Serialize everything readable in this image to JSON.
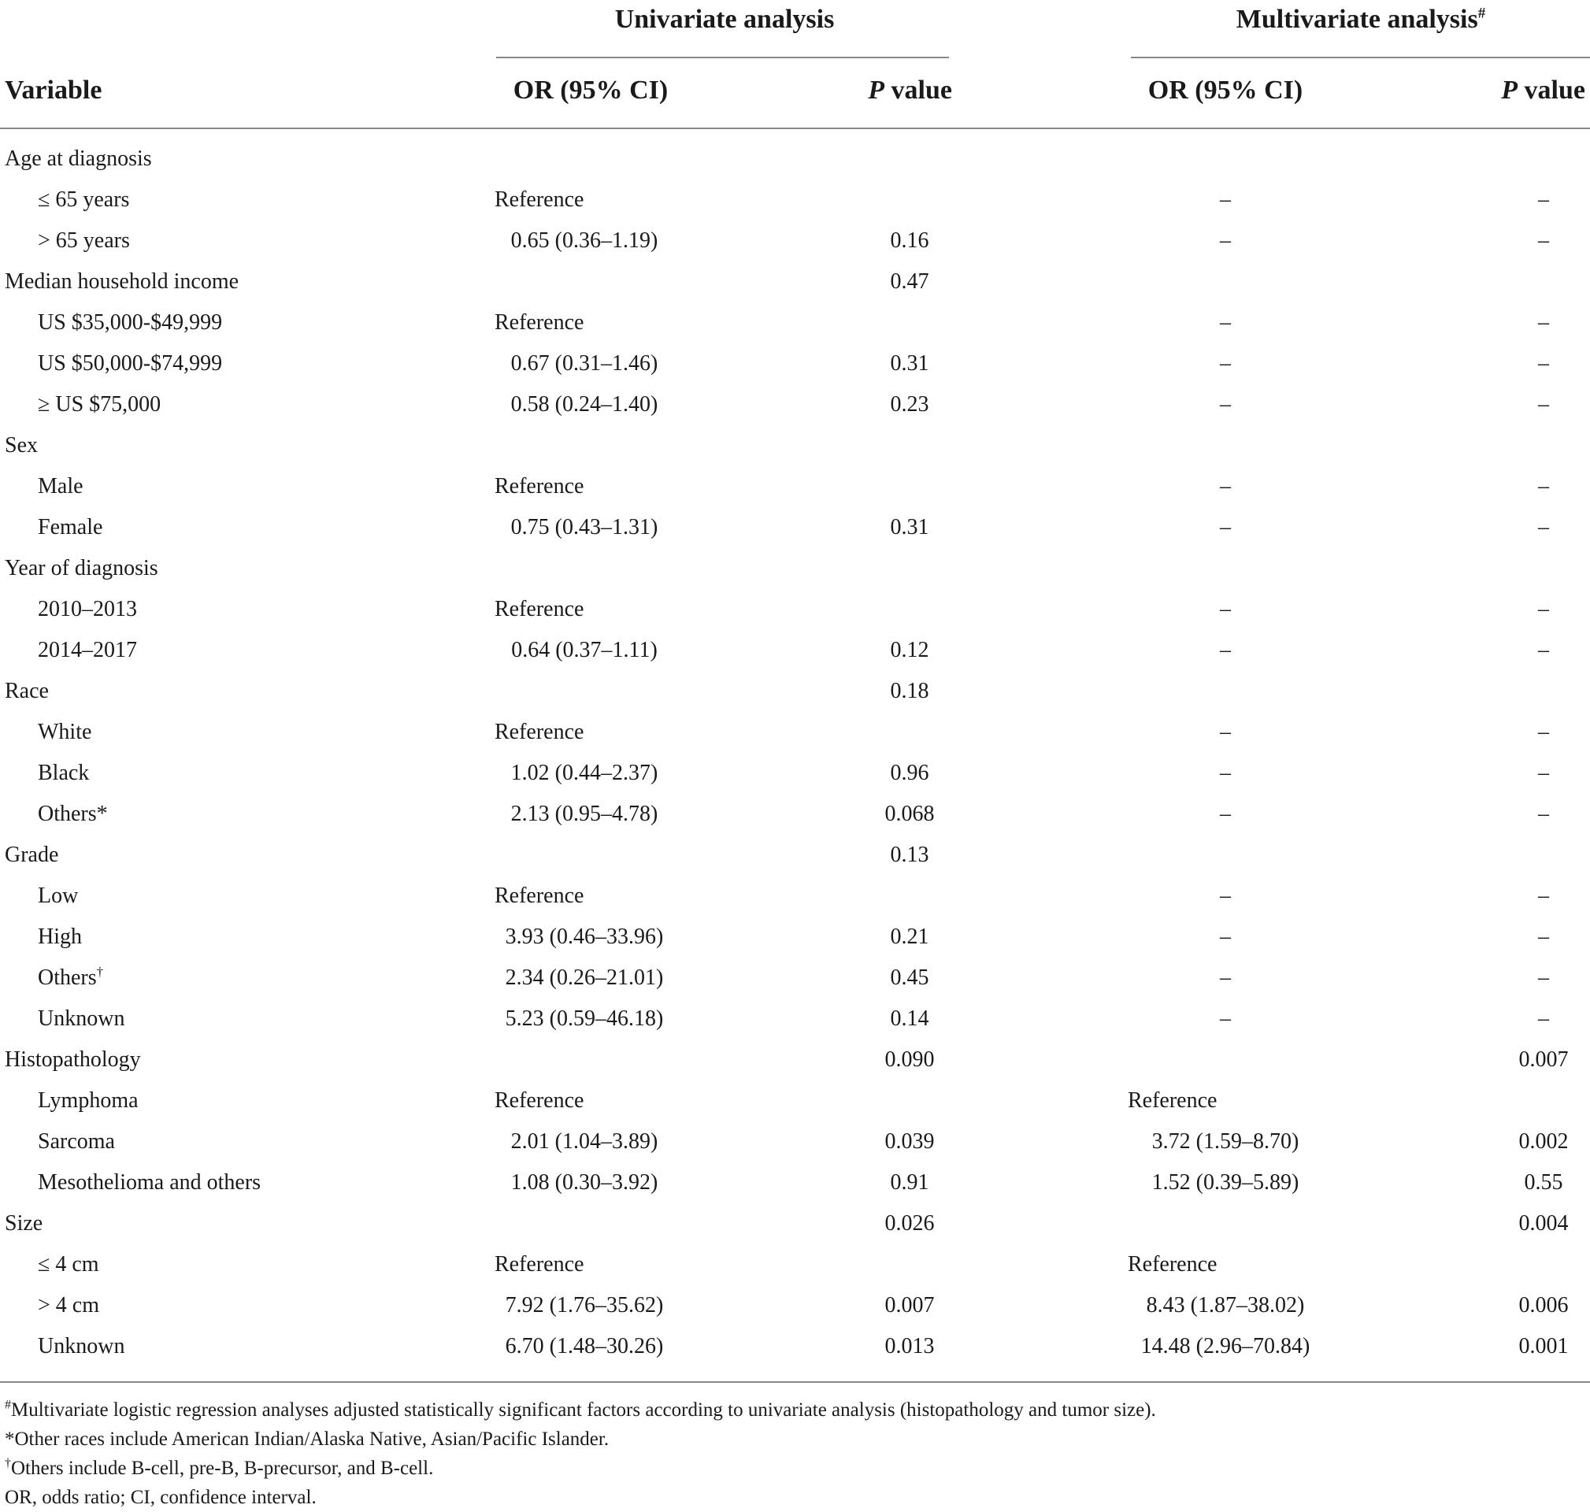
{
  "table": {
    "group_headers": {
      "univariate": "Univariate analysis",
      "multivariate": "Multivariate analysis",
      "multivariate_mark": "#"
    },
    "column_headers": {
      "variable": "Variable",
      "or_ci": "OR (95% CI)",
      "p_italic": "P",
      "p_rest": " value"
    },
    "rows": [
      {
        "variable": "Age at diagnosis",
        "indent": false,
        "or1": "",
        "p1": "",
        "or2": "",
        "p2": ""
      },
      {
        "variable": "≤ 65 years",
        "indent": true,
        "or1": "Reference",
        "p1": "",
        "or2": "–",
        "p2": "–"
      },
      {
        "variable": "> 65 years",
        "indent": true,
        "or1": "0.65 (0.36–1.19)",
        "p1": "0.16",
        "or2": "–",
        "p2": "–"
      },
      {
        "variable": "Median household income",
        "indent": false,
        "or1": "",
        "p1": "0.47",
        "or2": "",
        "p2": ""
      },
      {
        "variable": "US $35,000-$49,999",
        "indent": true,
        "or1": "Reference",
        "p1": "",
        "or2": "–",
        "p2": "–"
      },
      {
        "variable": "US $50,000-$74,999",
        "indent": true,
        "or1": "0.67 (0.31–1.46)",
        "p1": "0.31",
        "or2": "–",
        "p2": "–"
      },
      {
        "variable": "≥ US $75,000",
        "indent": true,
        "or1": "0.58 (0.24–1.40)",
        "p1": "0.23",
        "or2": "–",
        "p2": "–"
      },
      {
        "variable": "Sex",
        "indent": false,
        "or1": "",
        "p1": "",
        "or2": "",
        "p2": ""
      },
      {
        "variable": "Male",
        "indent": true,
        "or1": "Reference",
        "p1": "",
        "or2": "–",
        "p2": "–"
      },
      {
        "variable": "Female",
        "indent": true,
        "or1": "0.75 (0.43–1.31)",
        "p1": "0.31",
        "or2": "–",
        "p2": "–"
      },
      {
        "variable": "Year of diagnosis",
        "indent": false,
        "or1": "",
        "p1": "",
        "or2": "",
        "p2": ""
      },
      {
        "variable": "2010–2013",
        "indent": true,
        "or1": "Reference",
        "p1": "",
        "or2": "–",
        "p2": "–"
      },
      {
        "variable": "2014–2017",
        "indent": true,
        "or1": "0.64 (0.37–1.11)",
        "p1": "0.12",
        "or2": "–",
        "p2": "–"
      },
      {
        "variable": "Race",
        "indent": false,
        "or1": "",
        "p1": "0.18",
        "or2": "",
        "p2": ""
      },
      {
        "variable": "White",
        "indent": true,
        "or1": "Reference",
        "p1": "",
        "or2": "–",
        "p2": "–"
      },
      {
        "variable": "Black",
        "indent": true,
        "or1": "1.02 (0.44–2.37)",
        "p1": "0.96",
        "or2": "–",
        "p2": "–"
      },
      {
        "variable": "Others*",
        "indent": true,
        "or1": "2.13 (0.95–4.78)",
        "p1": "0.068",
        "or2": "–",
        "p2": "–"
      },
      {
        "variable": "Grade",
        "indent": false,
        "or1": "",
        "p1": "0.13",
        "or2": "",
        "p2": ""
      },
      {
        "variable": "Low",
        "indent": true,
        "or1": "Reference",
        "p1": "",
        "or2": "–",
        "p2": "–"
      },
      {
        "variable": "High",
        "indent": true,
        "or1": "3.93 (0.46–33.96)",
        "p1": "0.21",
        "or2": "–",
        "p2": "–"
      },
      {
        "variable": "Others",
        "mark": "†",
        "indent": true,
        "or1": "2.34 (0.26–21.01)",
        "p1": "0.45",
        "or2": "–",
        "p2": "–"
      },
      {
        "variable": "Unknown",
        "indent": true,
        "or1": "5.23 (0.59–46.18)",
        "p1": "0.14",
        "or2": "–",
        "p2": "–"
      },
      {
        "variable": "Histopathology",
        "indent": false,
        "or1": "",
        "p1": "0.090",
        "or2": "",
        "p2": "0.007"
      },
      {
        "variable": "Lymphoma",
        "indent": true,
        "or1": "Reference",
        "p1": "",
        "or2": "Reference",
        "p2": ""
      },
      {
        "variable": "Sarcoma",
        "indent": true,
        "or1": "2.01 (1.04–3.89)",
        "p1": "0.039",
        "or2": "3.72 (1.59–8.70)",
        "p2": "0.002"
      },
      {
        "variable": "Mesothelioma and others",
        "indent": true,
        "or1": "1.08 (0.30–3.92)",
        "p1": "0.91",
        "or2": "1.52 (0.39–5.89)",
        "p2": "0.55"
      },
      {
        "variable": "Size",
        "indent": false,
        "or1": "",
        "p1": "0.026",
        "or2": "",
        "p2": "0.004"
      },
      {
        "variable": "≤ 4 cm",
        "indent": true,
        "or1": "Reference",
        "p1": "",
        "or2": "Reference",
        "p2": ""
      },
      {
        "variable": "> 4 cm",
        "indent": true,
        "or1": "7.92 (1.76–35.62)",
        "p1": "0.007",
        "or2": "8.43 (1.87–38.02)",
        "p2": "0.006"
      },
      {
        "variable": "Unknown",
        "indent": true,
        "or1": "6.70 (1.48–30.26)",
        "p1": "0.013",
        "or2": "14.48 (2.96–70.84)",
        "p2": "0.001"
      }
    ]
  },
  "footnotes": [
    {
      "mark": "#",
      "text": "Multivariate logistic regression analyses adjusted statistically significant factors according to univariate analysis (histopathology and tumor size)."
    },
    {
      "mark": "",
      "text": "*Other races include American Indian/Alaska Native, Asian/Pacific Islander."
    },
    {
      "mark": "†",
      "text": "Others include B-cell, pre-B, B-precursor, and B-cell."
    },
    {
      "mark": "",
      "text": "OR, odds ratio; CI, confidence interval."
    }
  ]
}
